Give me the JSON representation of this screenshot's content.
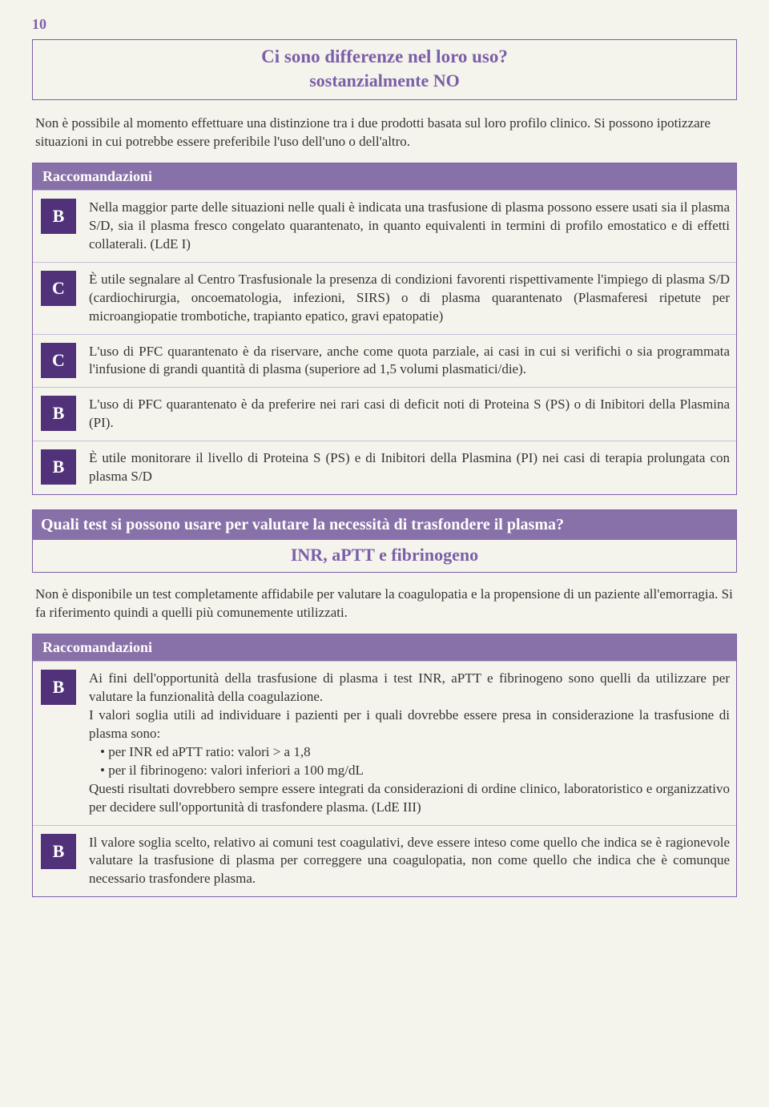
{
  "page_number": "10",
  "section1": {
    "title": "Ci sono differenze nel loro uso?",
    "subtitle": "sostanzialmente NO",
    "intro": "Non è possibile al momento effettuare una distinzione tra i due prodotti basata sul loro profilo clinico. Si possono ipotizzare situazioni in cui potrebbe essere preferibile l'uso dell'uno o dell'altro.",
    "rec_header": "Raccomandazioni",
    "items": [
      {
        "grade": "B",
        "text": "Nella maggior parte delle situazioni nelle quali è indicata una trasfusione di plasma possono essere usati sia il plasma S/D, sia il plasma fresco congelato quarantenato, in quanto equivalenti in termini di profilo emostatico e di effetti collaterali. (LdE I)"
      },
      {
        "grade": "C",
        "text": "È utile segnalare al Centro Trasfusionale la presenza di condizioni favorenti rispettivamente l'impiego di plasma S/D (cardiochirurgia, oncoematologia, infezioni, SIRS) o di plasma quarantenato (Plasmaferesi ripetute per microangiopatie trombotiche, trapianto epatico, gravi epatopatie)"
      },
      {
        "grade": "C",
        "text": "L'uso di PFC quarantenato è da riservare, anche come quota parziale, ai casi in cui si verifichi o sia programmata l'infusione di grandi quantità di plasma (superiore ad 1,5 volumi plasmatici/die)."
      },
      {
        "grade": "B",
        "text": "L'uso di PFC quarantenato è da preferire nei rari casi di deficit noti di Proteina S (PS) o di Inibitori della Plasmina (PI)."
      },
      {
        "grade": "B",
        "text": "È utile monitorare il livello di Proteina S (PS) e di Inibitori della Plasmina (PI) nei casi di terapia prolungata con plasma S/D"
      }
    ]
  },
  "section2": {
    "header": "Quali test si possono usare per valutare la necessità di trasfondere il plasma?",
    "subtitle": "INR, aPTT e fibrinogeno",
    "intro": "Non è disponibile un test completamente affidabile per valutare la coagulopatia e la propensione di un paziente all'emorragia. Si fa riferimento quindi a quelli più comunemente utilizzati.",
    "rec_header": "Raccomandazioni",
    "items": [
      {
        "grade": "B",
        "p1": "Ai fini dell'opportunità della trasfusione di plasma i test INR, aPTT e fibrinogeno sono quelli da utilizzare per valutare la funzionalità della coagulazione.",
        "p2": "I valori soglia utili ad individuare i pazienti per i quali dovrebbe essere presa in considerazione la trasfusione di plasma sono:",
        "b1": "• per INR ed aPTT ratio: valori > a 1,8",
        "b2": "• per il fibrinogeno: valori inferiori a 100 mg/dL",
        "p3": "Questi risultati dovrebbero sempre essere integrati da considerazioni di ordine clinico, laboratoristico e organizzativo per decidere sull'opportunità di trasfondere plasma. (LdE III)"
      },
      {
        "grade": "B",
        "text": "Il valore soglia scelto, relativo ai comuni test coagulativi, deve essere inteso come quello che indica se è ragionevole valutare la trasfusione di plasma per correggere una coagulopatia, non come quello che indica che è comunque necessario trasfondere plasma."
      }
    ]
  }
}
